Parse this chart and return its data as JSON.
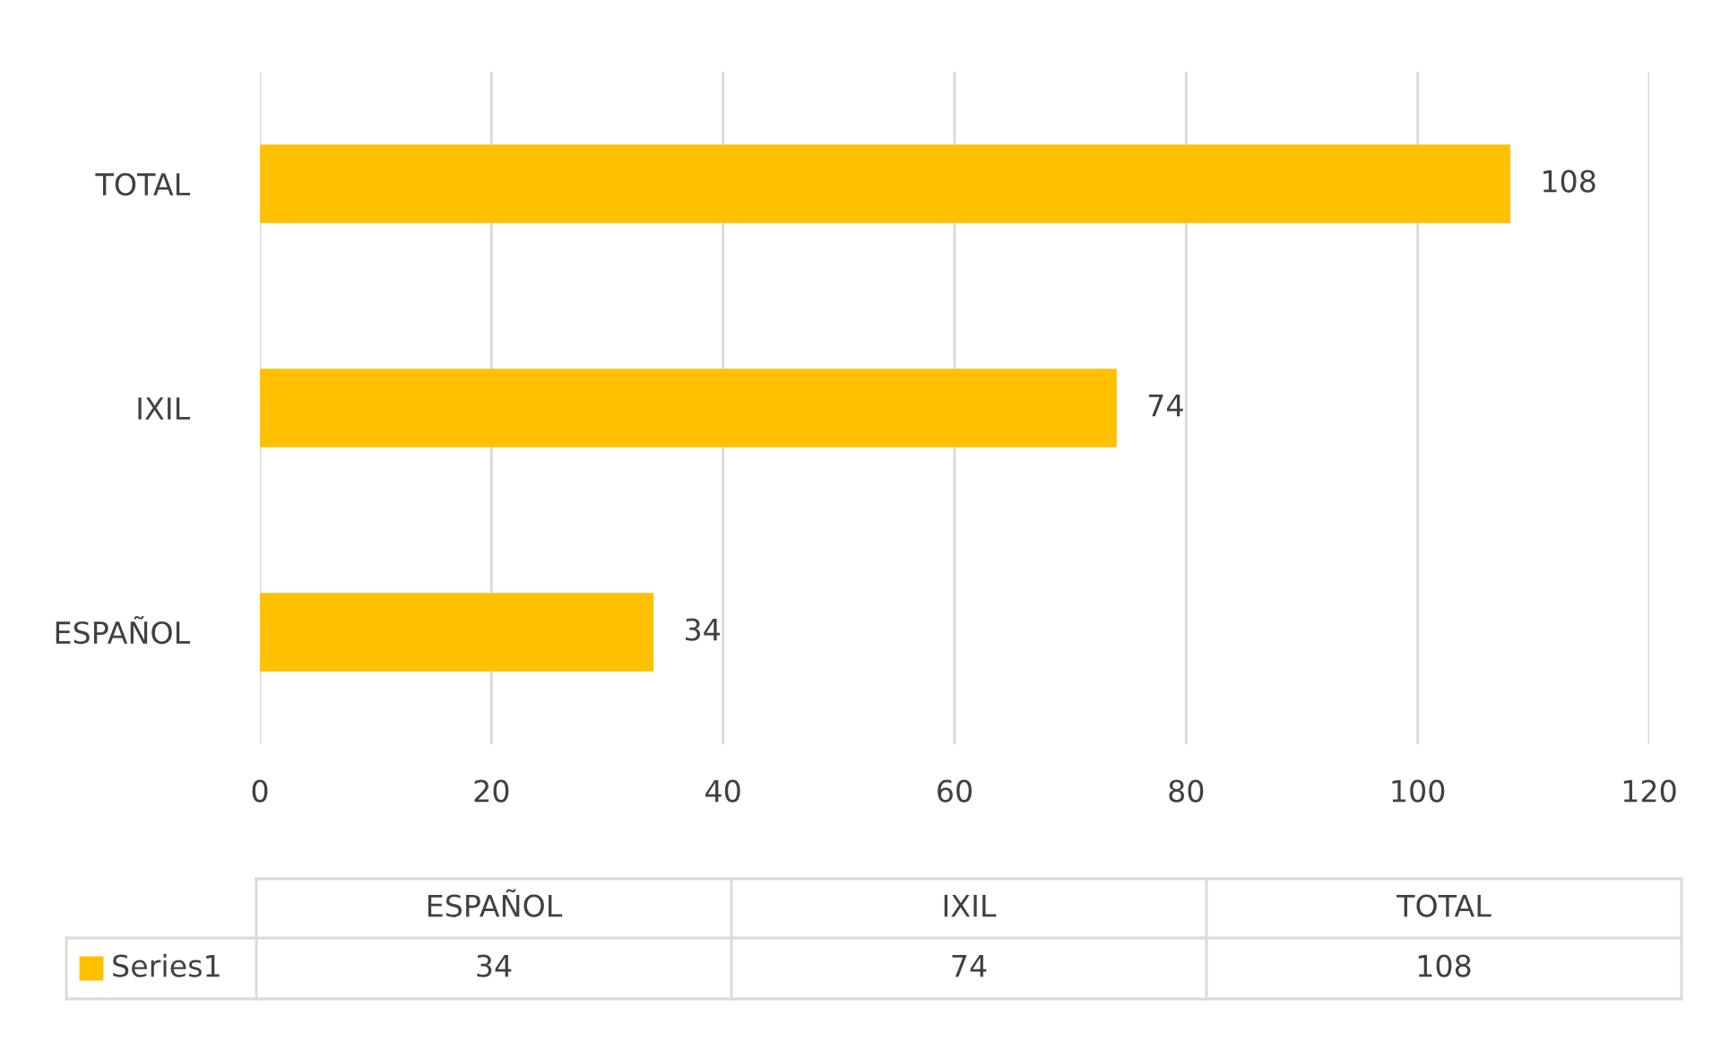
{
  "chart_data": {
    "type": "bar",
    "orientation": "horizontal",
    "categories": [
      "TOTAL",
      "IXIL",
      "ESPAÑOL"
    ],
    "series": [
      {
        "name": "Series1",
        "color": "#ffc000",
        "values": [
          108,
          74,
          34
        ],
        "value_labels": [
          "108",
          "74",
          "34"
        ]
      }
    ],
    "xlim": [
      0,
      120
    ],
    "xticks": [
      0,
      20,
      40,
      60,
      80,
      100,
      120
    ],
    "annotations": [
      "34",
      "74",
      "108"
    ],
    "grid": "x",
    "legend": "bottom"
  }
}
